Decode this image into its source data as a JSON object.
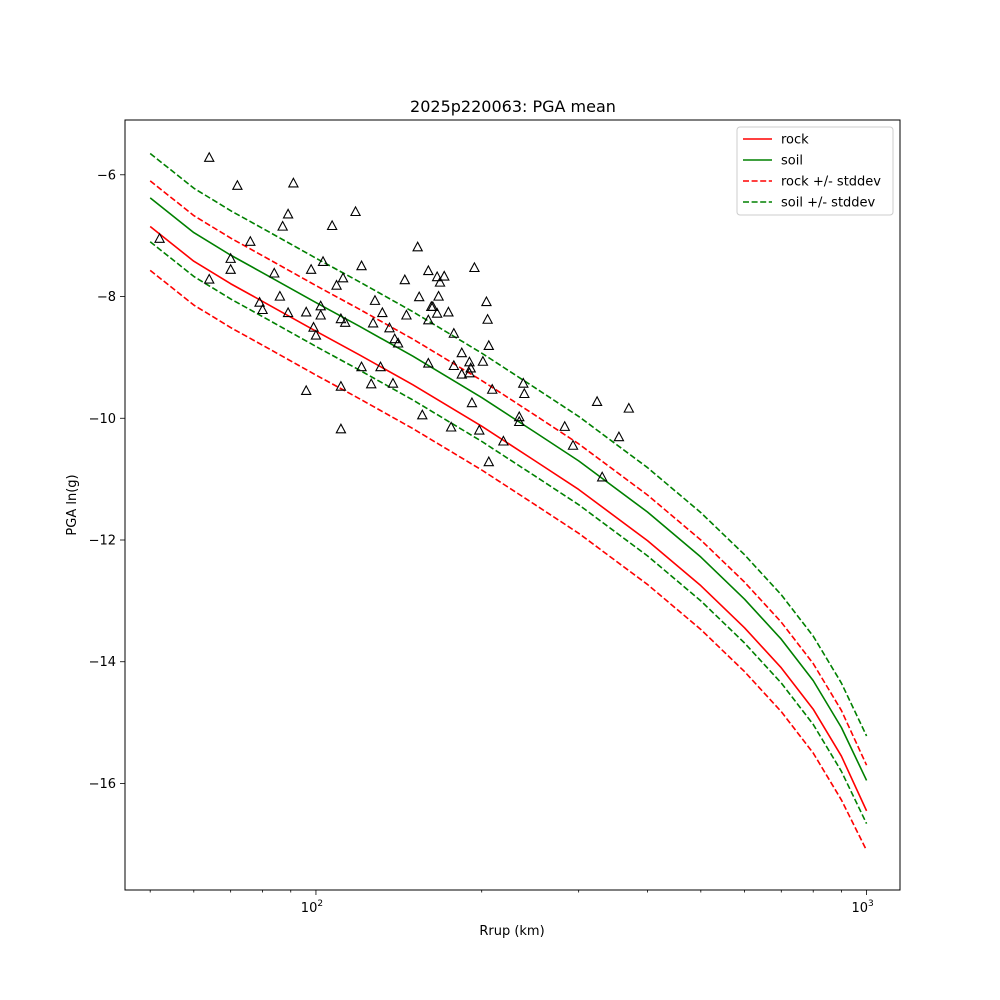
{
  "chart_data": {
    "type": "scatter",
    "title": "2025p220063: PGA mean",
    "xlabel": "Rrup (km)",
    "ylabel": "PGA ln(g)",
    "xscale": "log",
    "xlim": [
      45,
      1150
    ],
    "ylim": [
      -17.75,
      -5.1
    ],
    "xticks_major": [
      {
        "value": 100,
        "base": "10",
        "exp": "2"
      },
      {
        "value": 1000,
        "base": "10",
        "exp": "3"
      }
    ],
    "xticks_minor": [
      50,
      60,
      70,
      80,
      90,
      200,
      300,
      400,
      500,
      600,
      700,
      800,
      900
    ],
    "yticks": [
      {
        "value": -6,
        "label": "−6"
      },
      {
        "value": -8,
        "label": "−8"
      },
      {
        "value": -10,
        "label": "−10"
      },
      {
        "value": -12,
        "label": "−12"
      },
      {
        "value": -14,
        "label": "−14"
      },
      {
        "value": -16,
        "label": "−16"
      }
    ],
    "legend_position": "upper-right",
    "legend": [
      {
        "label": "rock",
        "color": "#ff0000",
        "dashed": false
      },
      {
        "label": "soil",
        "color": "#008000",
        "dashed": false
      },
      {
        "label": "rock +/- stddev",
        "color": "#ff0000",
        "dashed": true
      },
      {
        "label": "soil +/- stddev",
        "color": "#008000",
        "dashed": true
      }
    ],
    "curve_x": [
      50,
      60,
      70,
      80,
      100,
      120,
      150,
      200,
      250,
      300,
      400,
      500,
      600,
      700,
      800,
      900,
      1000
    ],
    "series": [
      {
        "key": "rock",
        "color": "#ff0000",
        "dashed": false,
        "y": [
          -6.85,
          -7.42,
          -7.79,
          -8.08,
          -8.57,
          -8.96,
          -9.45,
          -10.13,
          -10.7,
          -11.17,
          -12.01,
          -12.75,
          -13.44,
          -14.1,
          -14.78,
          -15.55,
          -16.45
        ]
      },
      {
        "key": "soil",
        "color": "#008000",
        "dashed": false,
        "y": [
          -6.38,
          -6.95,
          -7.32,
          -7.61,
          -8.1,
          -8.49,
          -8.98,
          -9.66,
          -10.23,
          -10.7,
          -11.54,
          -12.28,
          -12.97,
          -13.63,
          -14.31,
          -15.08,
          -15.95
        ]
      },
      {
        "key": "rock_plus",
        "color": "#ff0000",
        "dashed": true,
        "y": [
          -6.1,
          -6.67,
          -7.04,
          -7.33,
          -7.82,
          -8.21,
          -8.7,
          -9.38,
          -9.95,
          -10.42,
          -11.26,
          -12.0,
          -12.69,
          -13.35,
          -14.03,
          -14.8,
          -15.7
        ]
      },
      {
        "key": "rock_minus",
        "color": "#ff0000",
        "dashed": true,
        "y": [
          -7.57,
          -8.14,
          -8.51,
          -8.8,
          -9.29,
          -9.68,
          -10.17,
          -10.85,
          -11.42,
          -11.89,
          -12.73,
          -13.47,
          -14.16,
          -14.82,
          -15.5,
          -16.27,
          -17.1
        ]
      },
      {
        "key": "soil_plus",
        "color": "#008000",
        "dashed": true,
        "y": [
          -5.65,
          -6.22,
          -6.59,
          -6.88,
          -7.37,
          -7.76,
          -8.25,
          -8.93,
          -9.5,
          -9.97,
          -10.81,
          -11.55,
          -12.24,
          -12.9,
          -13.58,
          -14.35,
          -15.22
        ]
      },
      {
        "key": "soil_minus",
        "color": "#008000",
        "dashed": true,
        "y": [
          -7.1,
          -7.67,
          -8.04,
          -8.33,
          -8.82,
          -9.21,
          -9.7,
          -10.38,
          -10.95,
          -11.42,
          -12.26,
          -13.0,
          -13.69,
          -14.35,
          -15.03,
          -15.8,
          -16.66
        ]
      }
    ],
    "points": [
      [
        52,
        -7.05
      ],
      [
        64,
        -5.72
      ],
      [
        64,
        -7.72
      ],
      [
        70,
        -7.38
      ],
      [
        70,
        -7.56
      ],
      [
        72,
        -6.18
      ],
      [
        76,
        -7.1
      ],
      [
        79,
        -8.1
      ],
      [
        80,
        -8.22
      ],
      [
        84,
        -7.62
      ],
      [
        86,
        -8.0
      ],
      [
        87,
        -6.85
      ],
      [
        89,
        -8.27
      ],
      [
        89,
        -6.65
      ],
      [
        91,
        -6.14
      ],
      [
        96,
        -9.55
      ],
      [
        96,
        -8.26
      ],
      [
        98,
        -7.56
      ],
      [
        99,
        -8.51
      ],
      [
        100,
        -8.64
      ],
      [
        102,
        -8.31
      ],
      [
        102,
        -8.16
      ],
      [
        103,
        -7.43
      ],
      [
        107,
        -6.84
      ],
      [
        109,
        -7.82
      ],
      [
        111,
        -8.37
      ],
      [
        111,
        -10.18
      ],
      [
        111,
        -9.48
      ],
      [
        112,
        -7.7
      ],
      [
        113,
        -8.43
      ],
      [
        118,
        -6.61
      ],
      [
        121,
        -7.5
      ],
      [
        121,
        -9.16
      ],
      [
        126,
        -9.44
      ],
      [
        127,
        -8.44
      ],
      [
        128,
        -8.07
      ],
      [
        131,
        -9.16
      ],
      [
        132,
        -8.27
      ],
      [
        136,
        -8.52
      ],
      [
        138,
        -9.43
      ],
      [
        139,
        -8.7
      ],
      [
        141,
        -8.77
      ],
      [
        145,
        -7.73
      ],
      [
        146,
        -8.31
      ],
      [
        153,
        -7.19
      ],
      [
        154,
        -8.01
      ],
      [
        156,
        -9.95
      ],
      [
        160,
        -7.58
      ],
      [
        160,
        -8.39
      ],
      [
        160,
        -9.1
      ],
      [
        162,
        -8.17
      ],
      [
        163,
        -8.17
      ],
      [
        166,
        -8.28
      ],
      [
        166,
        -7.68
      ],
      [
        167,
        -8.0
      ],
      [
        168,
        -7.77
      ],
      [
        171,
        -7.67
      ],
      [
        174,
        -8.26
      ],
      [
        176,
        -10.15
      ],
      [
        178,
        -8.61
      ],
      [
        178,
        -9.14
      ],
      [
        184,
        -9.28
      ],
      [
        184,
        -8.93
      ],
      [
        190,
        -9.08
      ],
      [
        190,
        -9.26
      ],
      [
        191,
        -9.18
      ],
      [
        192,
        -9.75
      ],
      [
        194,
        -7.53
      ],
      [
        198,
        -10.2
      ],
      [
        201,
        -9.07
      ],
      [
        204,
        -8.09
      ],
      [
        205,
        -8.38
      ],
      [
        206,
        -10.72
      ],
      [
        206,
        -8.81
      ],
      [
        209,
        -9.53
      ],
      [
        219,
        -10.38
      ],
      [
        234,
        -9.98
      ],
      [
        234,
        -10.06
      ],
      [
        238,
        -9.43
      ],
      [
        239,
        -9.6
      ],
      [
        283,
        -10.14
      ],
      [
        293,
        -10.45
      ],
      [
        324,
        -9.73
      ],
      [
        331,
        -10.97
      ],
      [
        355,
        -10.31
      ],
      [
        370,
        -9.84
      ]
    ]
  }
}
